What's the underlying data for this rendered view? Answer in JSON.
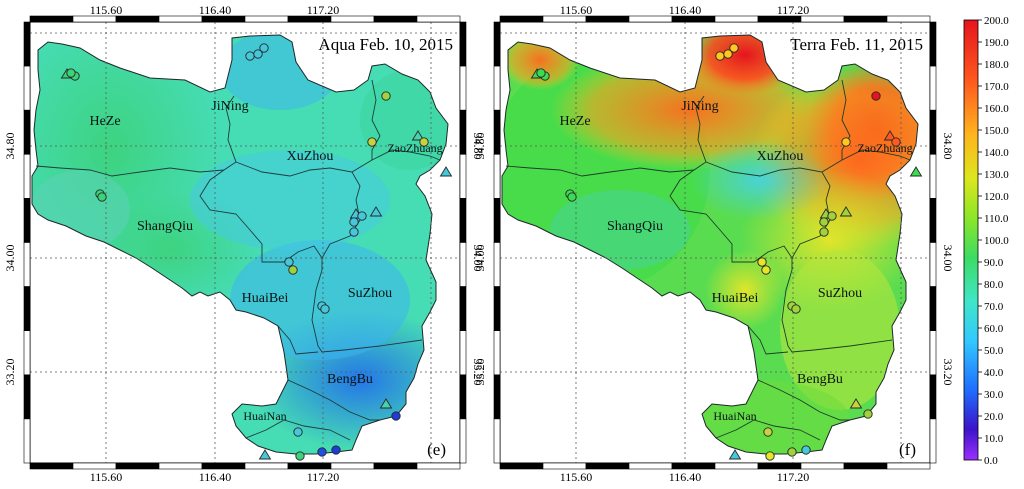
{
  "panels": [
    {
      "id": "e",
      "title": "Aqua Feb. 10, 2015",
      "panel_label": "(e)",
      "x_ticks": [
        "115.60",
        "116.40",
        "117.20"
      ],
      "y_ticks": [
        "34.80",
        "34.00",
        "33.20"
      ],
      "cities": [
        "HeZe",
        "JiNing",
        "XuZhou",
        "ZaoZhuang",
        "ShangQiu",
        "HuaiBei",
        "SuZhou",
        "BengBu",
        "HuaiNan"
      ]
    },
    {
      "id": "f",
      "title": "Terra Feb. 11, 2015",
      "panel_label": "(f)",
      "x_ticks": [
        "115.60",
        "116.40",
        "117.20"
      ],
      "y_ticks": [
        "34.80",
        "34.00",
        "33.20"
      ],
      "cities": [
        "HeZe",
        "JiNing",
        "XuZhou",
        "ZaoZhuang",
        "ShangQiu",
        "HuaiBei",
        "SuZhou",
        "BengBu",
        "HuaiNan"
      ]
    }
  ],
  "colorbar": {
    "min": 0,
    "max": 200,
    "labels": [
      "200.0",
      "190.0",
      "180.0",
      "170.0",
      "160.0",
      "150.0",
      "140.0",
      "130.0",
      "120.0",
      "110.0",
      "100.0",
      "90.0",
      "80.0",
      "70.0",
      "60.0",
      "50.0",
      "40.0",
      "30.0",
      "20.0",
      "10.0",
      "0.0"
    ],
    "colors": [
      "#8a2be2",
      "#1e1ec8",
      "#1e78ff",
      "#3cc8ff",
      "#40e0c0",
      "#3cdc6e",
      "#78e632",
      "#dcdc28",
      "#ff9628",
      "#ff3c1e",
      "#e6141e"
    ]
  }
}
